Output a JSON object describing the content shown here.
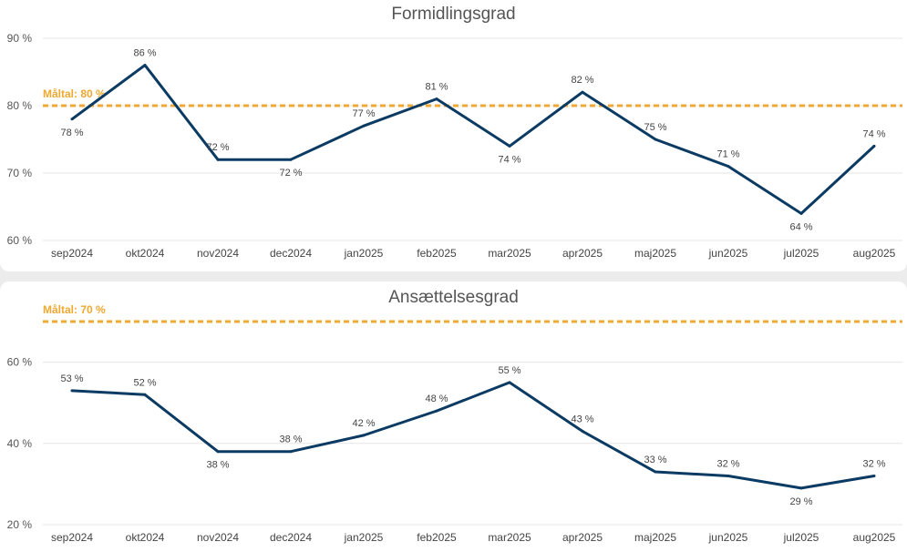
{
  "chart_data": [
    {
      "type": "line",
      "title": "Formidlingsgrad",
      "categories": [
        "sep2024",
        "okt2024",
        "nov2024",
        "dec2024",
        "jan2025",
        "feb2025",
        "mar2025",
        "apr2025",
        "maj2025",
        "jun2025",
        "jul2025",
        "aug2025"
      ],
      "series": [
        {
          "values": [
            78,
            86,
            72,
            72,
            77,
            81,
            74,
            82,
            75,
            71,
            64,
            74
          ],
          "color": "#0b3a63"
        }
      ],
      "data_labels": [
        "78 %",
        "86 %",
        "72 %",
        "72 %",
        "77 %",
        "81 %",
        "74 %",
        "82 %",
        "75 %",
        "71 %",
        "64 %",
        "74 %"
      ],
      "yticks": [
        60,
        70,
        80,
        90
      ],
      "ytick_labels": [
        "60 %",
        "70 %",
        "80 %",
        "90 %"
      ],
      "ylim": [
        60,
        90
      ],
      "target": {
        "value": 80,
        "label": "Måltal: 80 %",
        "color": "#f0a830"
      },
      "grid": true
    },
    {
      "type": "line",
      "title": "Ansættelsesgrad",
      "categories": [
        "sep2024",
        "okt2024",
        "nov2024",
        "dec2024",
        "jan2025",
        "feb2025",
        "mar2025",
        "apr2025",
        "maj2025",
        "jun2025",
        "jul2025",
        "aug2025"
      ],
      "series": [
        {
          "values": [
            53,
            52,
            38,
            38,
            42,
            48,
            55,
            43,
            33,
            32,
            29,
            32
          ],
          "color": "#0b3a63"
        }
      ],
      "data_labels": [
        "53 %",
        "52 %",
        "38 %",
        "38 %",
        "42 %",
        "48 %",
        "55 %",
        "43 %",
        "33 %",
        "32 %",
        "29 %",
        "32 %"
      ],
      "yticks": [
        20,
        40,
        60
      ],
      "ytick_labels": [
        "20 %",
        "40 %",
        "60 %"
      ],
      "ylim": [
        20,
        70
      ],
      "target": {
        "value": 70,
        "label": "Måltal: 70 %",
        "color": "#f0a830"
      },
      "grid": true
    }
  ]
}
